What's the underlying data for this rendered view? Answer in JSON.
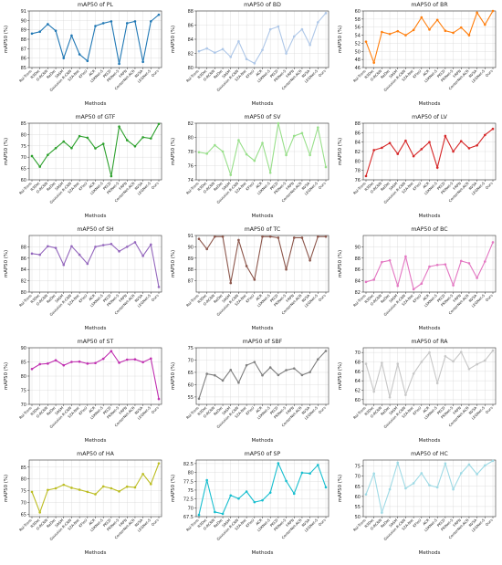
{
  "methods": [
    "RoI-Trans",
    "R3Det",
    "O-RCNN",
    "ReDet",
    "SASM",
    "Gaussian R-CNN",
    "S2A-Net",
    "KFIoU",
    "ACR",
    "LSKNet-S",
    "PKCD",
    "PKINet-S",
    "FRPN",
    "CenterNet-ACR",
    "RVSA",
    "LEGNet-S",
    "Ours"
  ],
  "chart_data": [
    {
      "type": "line",
      "title": "mAP50 of PL",
      "xlabel": "Methods",
      "ylabel": "mAP50 (%)",
      "color": "#1f77b4",
      "ylim": [
        85,
        91
      ],
      "yticks": [
        85,
        86,
        87,
        88,
        89,
        90,
        91
      ],
      "values": [
        88.6,
        88.8,
        89.6,
        88.9,
        86.0,
        88.4,
        86.4,
        85.7,
        89.4,
        89.7,
        89.9,
        85.4,
        89.7,
        89.9,
        85.6,
        89.9,
        90.6
      ]
    },
    {
      "type": "line",
      "title": "mAP50 of BD",
      "xlabel": "Methods",
      "ylabel": "mAP50 (%)",
      "color": "#aec7e8",
      "ylim": [
        80,
        88
      ],
      "yticks": [
        80,
        82,
        84,
        86,
        88
      ],
      "values": [
        82.3,
        82.7,
        82.1,
        82.6,
        81.5,
        83.7,
        81.2,
        80.6,
        82.5,
        85.4,
        85.8,
        82.0,
        84.4,
        85.4,
        83.2,
        86.4,
        87.7
      ]
    },
    {
      "type": "line",
      "title": "mAP50 of BR",
      "xlabel": "Methods",
      "ylabel": "mAP50 (%)",
      "color": "#ff7f0e",
      "ylim": [
        46,
        60
      ],
      "yticks": [
        46,
        48,
        50,
        52,
        54,
        56,
        58,
        60
      ],
      "values": [
        52.4,
        47.2,
        54.8,
        54.3,
        55.0,
        54.0,
        55.3,
        58.4,
        55.4,
        57.8,
        55.1,
        54.6,
        55.9,
        54.0,
        59.6,
        56.6,
        60.0
      ]
    },
    {
      "type": "line",
      "title": "mAP50 of GTF",
      "xlabel": "Methods",
      "ylabel": "mAP50 (%)",
      "color": "#2ca02c",
      "ylim": [
        60,
        85
      ],
      "yticks": [
        60,
        65,
        70,
        75,
        80,
        85
      ],
      "values": [
        70.5,
        65.8,
        71.0,
        74.0,
        76.9,
        74.0,
        79.3,
        78.6,
        73.9,
        75.9,
        61.6,
        83.5,
        77.5,
        74.8,
        78.8,
        78.3,
        84.7
      ]
    },
    {
      "type": "line",
      "title": "mAP50 of SV",
      "xlabel": "Methods",
      "ylabel": "mAP50 (%)",
      "color": "#98df8a",
      "ylim": [
        74,
        82
      ],
      "yticks": [
        74,
        76,
        78,
        80,
        82
      ],
      "values": [
        77.9,
        77.7,
        78.9,
        78.0,
        74.7,
        79.6,
        77.6,
        76.7,
        79.2,
        75.0,
        82.0,
        77.5,
        80.2,
        80.6,
        77.5,
        81.4,
        75.8
      ]
    },
    {
      "type": "line",
      "title": "mAP50 of LV",
      "xlabel": "Methods",
      "ylabel": "mAP50 (%)",
      "color": "#d62728",
      "ylim": [
        76,
        88
      ],
      "yticks": [
        76,
        78,
        80,
        82,
        84,
        86,
        88
      ],
      "values": [
        76.8,
        82.3,
        82.8,
        83.8,
        81.5,
        84.3,
        81.0,
        82.5,
        84.0,
        78.6,
        85.3,
        82.0,
        84.2,
        82.7,
        83.3,
        85.5,
        86.8
      ]
    },
    {
      "type": "line",
      "title": "mAP50 of SH",
      "xlabel": "Methods",
      "ylabel": "mAP50 (%)",
      "color": "#9467bd",
      "ylim": [
        80,
        90
      ],
      "yticks": [
        80,
        82,
        84,
        86,
        88
      ],
      "values": [
        86.8,
        86.6,
        88.1,
        87.8,
        84.8,
        88.1,
        86.6,
        85.0,
        88.0,
        88.3,
        88.5,
        87.2,
        88.0,
        88.8,
        86.4,
        88.4,
        80.9
      ]
    },
    {
      "type": "line",
      "title": "mAP50 of TC",
      "xlabel": "Methods",
      "ylabel": "mAP50 (%)",
      "color": "#8c564b",
      "ylim": [
        86,
        91
      ],
      "yticks": [
        87,
        88,
        89,
        90,
        91
      ],
      "values": [
        90.7,
        89.8,
        90.9,
        90.9,
        86.8,
        90.6,
        88.3,
        87.1,
        90.9,
        90.9,
        90.8,
        88.0,
        90.8,
        90.8,
        88.8,
        90.9,
        90.9
      ]
    },
    {
      "type": "line",
      "title": "mAP50 of BC",
      "xlabel": "Methods",
      "ylabel": "mAP50 (%)",
      "color": "#e377c2",
      "ylim": [
        82,
        92
      ],
      "yticks": [
        82,
        84,
        86,
        88,
        90
      ],
      "values": [
        83.8,
        84.2,
        87.3,
        87.6,
        83.1,
        88.3,
        82.5,
        83.5,
        86.5,
        86.8,
        86.9,
        83.2,
        87.5,
        87.1,
        84.5,
        87.4,
        90.8
      ]
    },
    {
      "type": "line",
      "title": "mAP50 of ST",
      "xlabel": "Methods",
      "ylabel": "mAP50 (%)",
      "color": "#c02fb0",
      "ylim": [
        70,
        90
      ],
      "yticks": [
        70,
        75,
        80,
        85,
        90
      ],
      "values": [
        82.5,
        84.2,
        84.4,
        85.6,
        83.8,
        85.0,
        85.1,
        84.4,
        84.6,
        86.1,
        88.8,
        84.7,
        85.8,
        85.9,
        84.9,
        86.2,
        71.9
      ]
    },
    {
      "type": "line",
      "title": "mAP50 of SBF",
      "xlabel": "Methods",
      "ylabel": "mAP50 (%)",
      "color": "#7f7f7f",
      "ylim": [
        52,
        75
      ],
      "yticks": [
        55,
        60,
        65,
        70,
        75
      ],
      "values": [
        54.3,
        64.4,
        63.8,
        61.7,
        66.0,
        60.8,
        67.9,
        69.2,
        63.8,
        67.0,
        63.9,
        65.9,
        66.6,
        63.9,
        65.1,
        70.3,
        73.7
      ]
    },
    {
      "type": "line",
      "title": "mAP50 of RA",
      "xlabel": "Methods",
      "ylabel": "mAP50 (%)",
      "color": "#c7c7c7",
      "ylim": [
        59,
        71
      ],
      "yticks": [
        60,
        62,
        64,
        66,
        68,
        70
      ],
      "values": [
        67.6,
        61.7,
        67.8,
        60.5,
        67.6,
        61.0,
        65.5,
        68.0,
        70.0,
        63.5,
        69.2,
        68.1,
        70.1,
        66.5,
        67.5,
        68.3,
        70.4
      ]
    },
    {
      "type": "line",
      "title": "mAP50 of HA",
      "xlabel": "Methods",
      "ylabel": "mAP50 (%)",
      "color": "#bcbd22",
      "ylim": [
        64,
        88
      ],
      "yticks": [
        65,
        70,
        75,
        80,
        85
      ],
      "values": [
        74.5,
        65.8,
        75.3,
        76.0,
        77.5,
        76.2,
        75.4,
        74.5,
        73.5,
        76.8,
        76.0,
        74.7,
        76.7,
        76.4,
        82.1,
        77.8,
        86.6
      ]
    },
    {
      "type": "line",
      "title": "mAP50 of SP",
      "xlabel": "Methods",
      "ylabel": "mAP50 (%)",
      "color": "#17becf",
      "ylim": [
        67.5,
        83.5
      ],
      "yticks": [
        67.5,
        70.0,
        72.5,
        75.0,
        77.5,
        80.0,
        82.5
      ],
      "values": [
        68.0,
        77.8,
        68.8,
        68.3,
        73.5,
        72.6,
        74.6,
        71.6,
        72.1,
        74.3,
        82.6,
        77.6,
        74.0,
        79.9,
        79.7,
        82.1,
        75.8
      ]
    },
    {
      "type": "line",
      "title": "mAP50 of HC",
      "xlabel": "Methods",
      "ylabel": "mAP50 (%)",
      "color": "#9edae5",
      "ylim": [
        50,
        78
      ],
      "yticks": [
        50,
        55,
        60,
        65,
        70,
        75
      ],
      "values": [
        61.0,
        71.3,
        52.0,
        63.5,
        76.7,
        64.0,
        66.5,
        71.5,
        65.5,
        64.5,
        76.3,
        63.5,
        71.5,
        75.8,
        71.0,
        75.3,
        77.6
      ]
    }
  ]
}
